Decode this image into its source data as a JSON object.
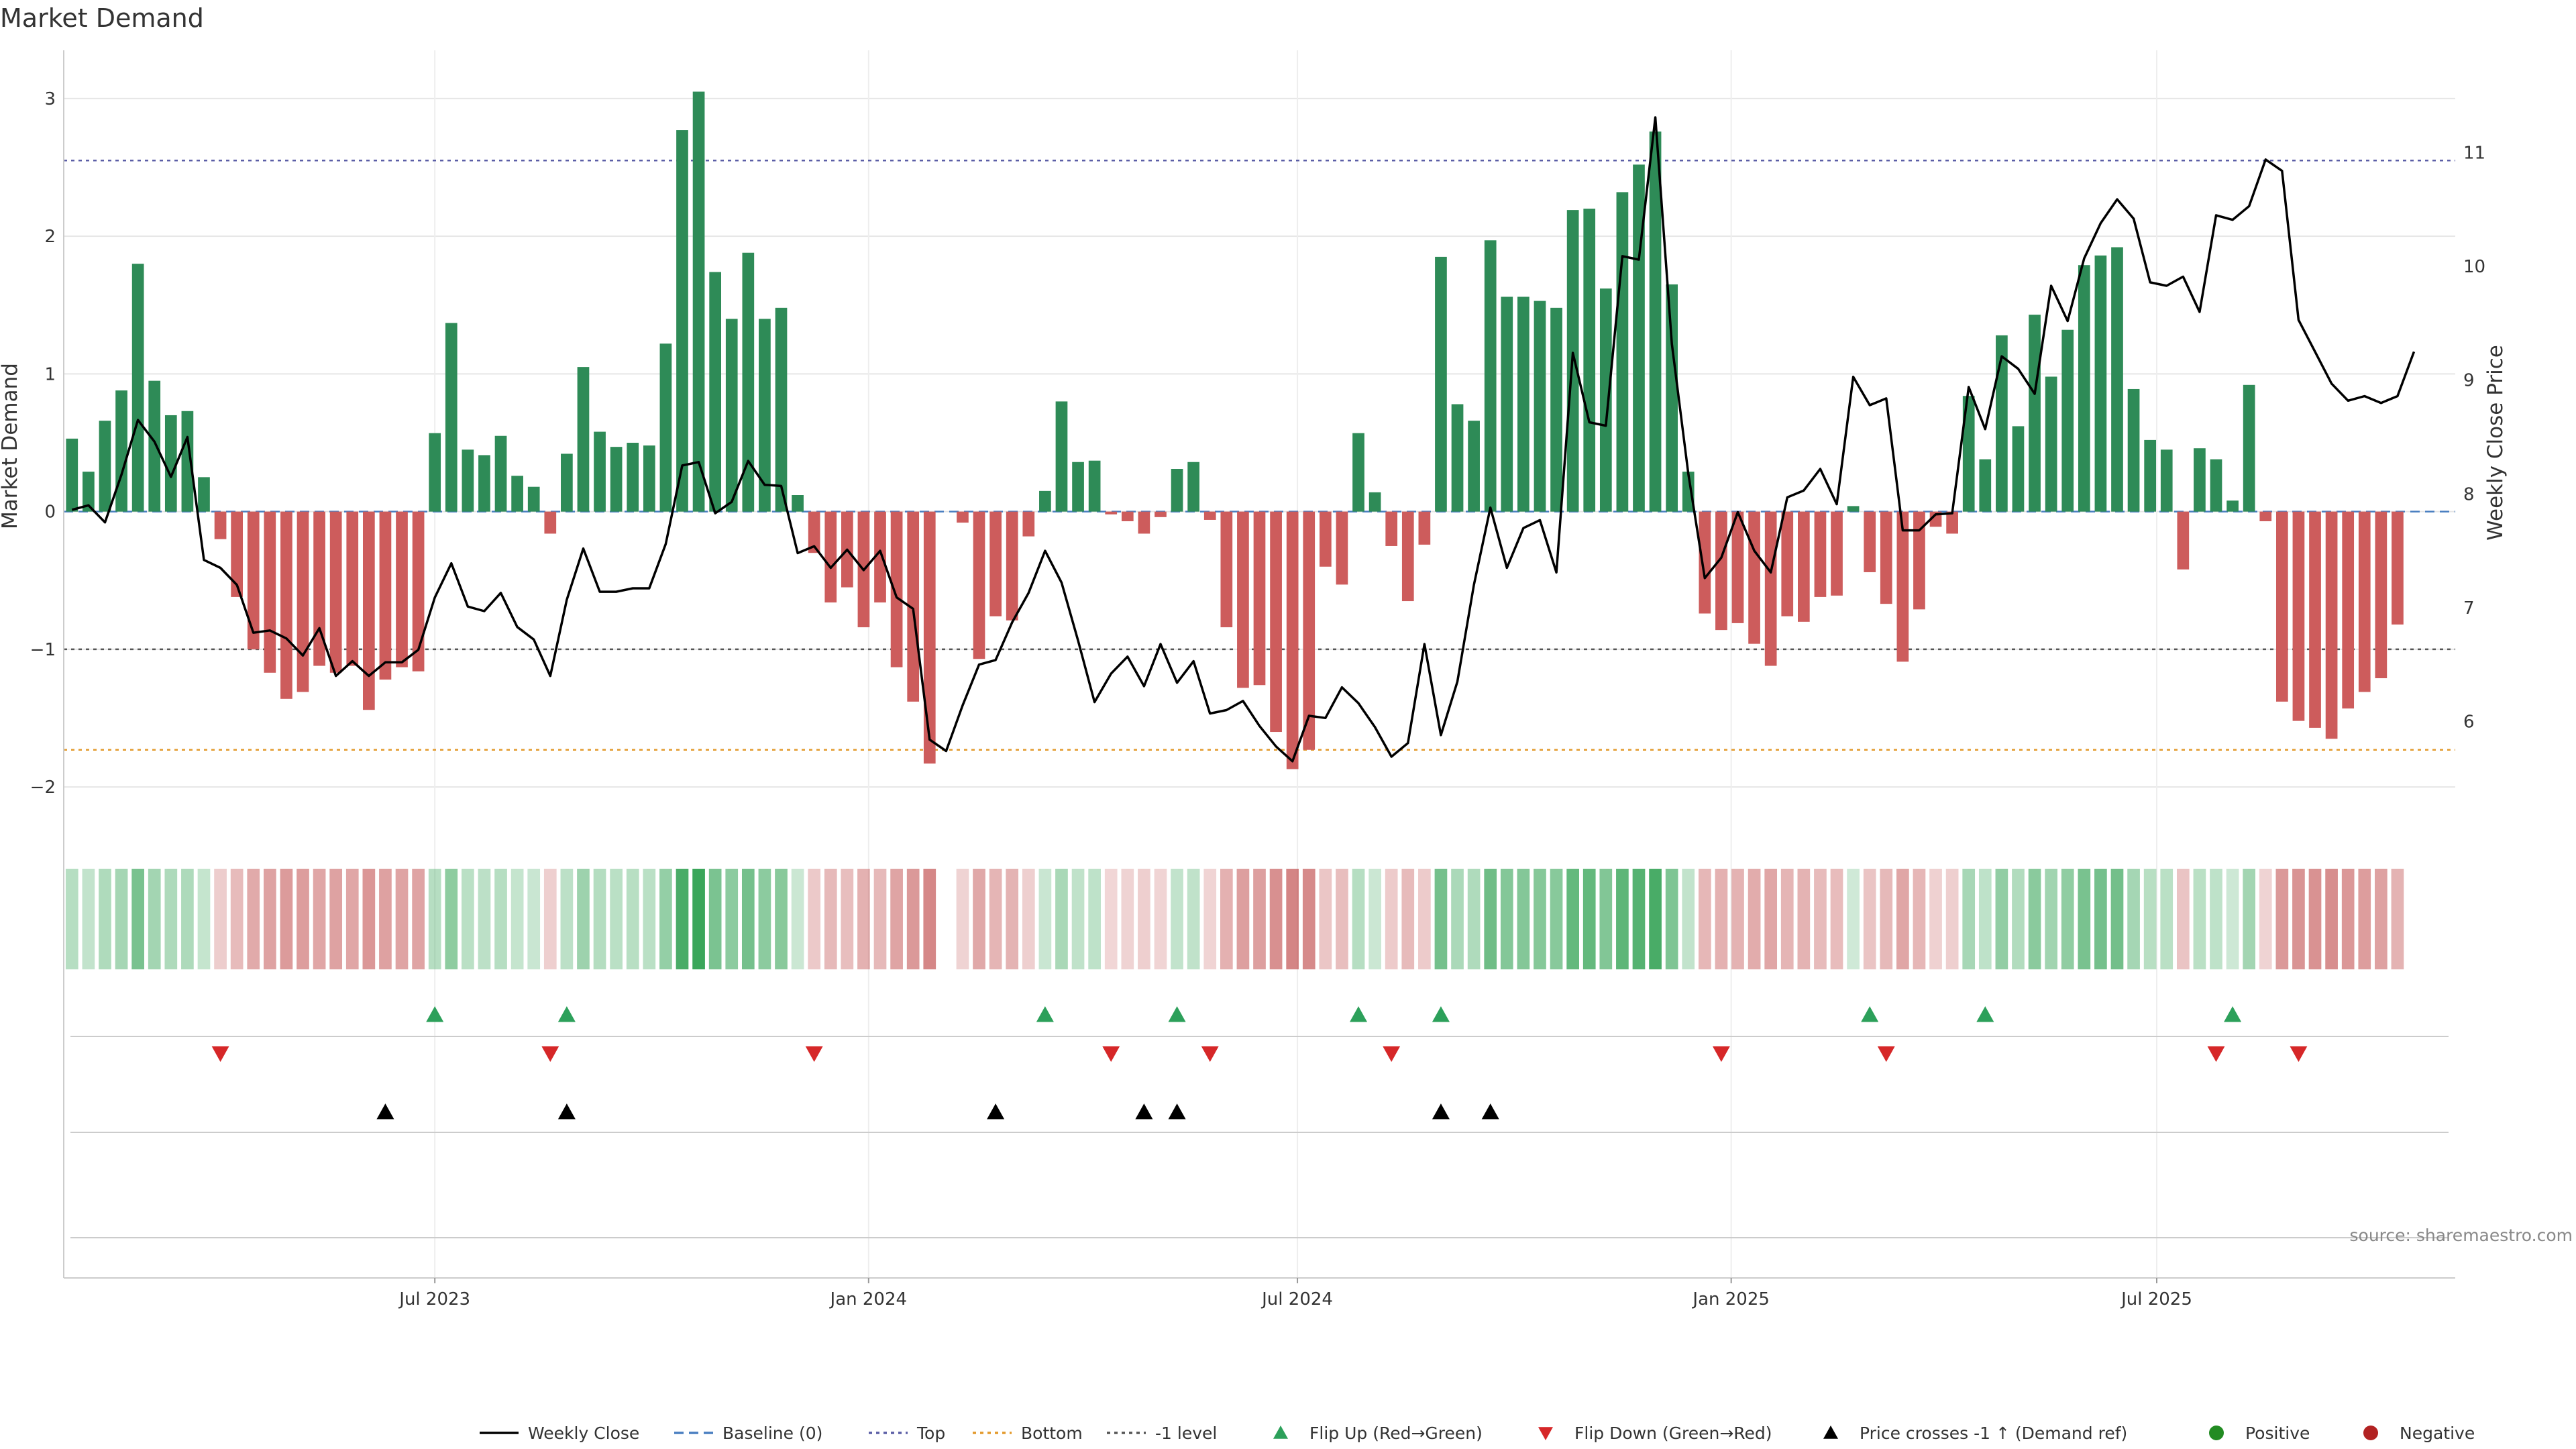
{
  "chart_data": {
    "type": "bar",
    "title": "Market Demand",
    "ylabel": "Market Demand",
    "y2label": "Weekly Close Price",
    "ylim": [
      -2.35,
      3.35
    ],
    "y2lim": [
      5.0,
      11.9
    ],
    "yticks": [
      3,
      2,
      1,
      0,
      -1,
      -2
    ],
    "ytick_labels": [
      "3",
      "2",
      "1",
      "0",
      "−1",
      "−2"
    ],
    "y2ticks": [
      11,
      10,
      9,
      8,
      7,
      6
    ],
    "y2tick_labels": [
      "11",
      "10",
      "9",
      "8",
      "7",
      "6"
    ],
    "x_start": "2023-03-13",
    "x_step_days": 7,
    "xlim": [
      -0.5,
      144.5
    ],
    "xticks": [
      {
        "label": "Jul 2023",
        "x": 22.0
      },
      {
        "label": "Jan 2024",
        "x": 48.3
      },
      {
        "label": "Jul 2024",
        "x": 74.3
      },
      {
        "label": "Jan 2025",
        "x": 100.6
      },
      {
        "label": "Jul 2025",
        "x": 126.4
      }
    ],
    "reference_lines": [
      {
        "name": "Top",
        "value": 2.55,
        "color": "#5b5ea6",
        "style": "dotted"
      },
      {
        "name": "-1 level",
        "value": -1.0,
        "color": "#555555",
        "style": "dotted"
      },
      {
        "name": "Bottom",
        "value": -1.73,
        "color": "#e39a2c",
        "style": "dotted"
      },
      {
        "name": "Baseline (0)",
        "value": 0,
        "color": "#4a7fc1",
        "style": "dashed"
      }
    ],
    "series": [
      {
        "name": "Market Demand",
        "type": "bar",
        "values": [
          0.53,
          0.29,
          0.66,
          0.88,
          1.8,
          0.95,
          0.7,
          0.73,
          0.25,
          -0.2,
          -0.62,
          -1.0,
          -1.17,
          -1.36,
          -1.31,
          -1.12,
          -1.17,
          -1.12,
          -1.44,
          -1.22,
          -1.13,
          -1.16,
          0.57,
          1.37,
          0.45,
          0.41,
          0.55,
          0.26,
          0.18,
          -0.16,
          0.42,
          1.05,
          0.58,
          0.47,
          0.5,
          0.48,
          1.22,
          2.77,
          3.05,
          1.74,
          1.4,
          1.88,
          1.4,
          1.48,
          0.12,
          -0.3,
          -0.66,
          -0.55,
          -0.84,
          -0.66,
          -1.13,
          -1.38,
          -1.83,
          0,
          -0.08,
          -1.07,
          -0.76,
          -0.79,
          -0.18,
          0.15,
          0.8,
          0.36,
          0.37,
          -0.02,
          -0.07,
          -0.16,
          -0.04,
          0.31,
          0.36,
          -0.06,
          -0.84,
          -1.28,
          -1.26,
          -1.6,
          -1.87,
          -1.73,
          -0.4,
          -0.53,
          0.57,
          0.14,
          -0.25,
          -0.65,
          -0.24,
          1.85,
          0.78,
          0.66,
          1.97,
          1.56,
          1.56,
          1.53,
          1.48,
          2.19,
          2.2,
          1.62,
          2.32,
          2.52,
          2.76,
          1.65,
          0.29,
          -0.74,
          -0.86,
          -0.81,
          -0.96,
          -1.12,
          -0.76,
          -0.8,
          -0.62,
          -0.61,
          0.04,
          -0.44,
          -0.67,
          -1.09,
          -0.71,
          -0.11,
          -0.16,
          0.84,
          0.38,
          1.28,
          0.62,
          1.43,
          0.98,
          1.32,
          1.79,
          1.86,
          1.92,
          0.89,
          0.52,
          0.45,
          -0.42,
          0.46,
          0.38,
          0.08,
          0.92,
          -0.07,
          -1.38,
          -1.52,
          -1.57,
          -1.65,
          -1.43,
          -1.31,
          -1.21,
          -0.82
        ]
      },
      {
        "name": "Weekly Close",
        "type": "line",
        "axis": "right",
        "values": [
          7.86,
          7.9,
          7.75,
          8.17,
          8.65,
          8.46,
          8.15,
          8.5,
          7.42,
          7.35,
          7.2,
          6.78,
          6.8,
          6.73,
          6.58,
          6.82,
          6.4,
          6.53,
          6.4,
          6.52,
          6.52,
          6.63,
          7.09,
          7.39,
          7.01,
          6.97,
          7.13,
          6.83,
          6.72,
          6.4,
          7.07,
          7.52,
          7.14,
          7.14,
          7.17,
          7.17,
          7.56,
          8.25,
          8.28,
          7.83,
          7.93,
          8.29,
          8.08,
          8.07,
          7.48,
          7.54,
          7.35,
          7.51,
          7.33,
          7.5,
          7.09,
          6.99,
          5.84,
          5.74,
          6.14,
          6.5,
          6.54,
          6.87,
          7.13,
          7.5,
          7.22,
          6.71,
          6.17,
          6.42,
          6.57,
          6.31,
          6.68,
          6.34,
          6.53,
          6.07,
          6.1,
          6.18,
          5.96,
          5.78,
          5.65,
          6.05,
          6.03,
          6.3,
          6.16,
          5.95,
          5.69,
          5.81,
          6.68,
          5.88,
          6.35,
          7.2,
          7.88,
          7.35,
          7.7,
          7.77,
          7.31,
          9.24,
          8.63,
          8.6,
          10.09,
          10.06,
          11.31,
          9.32,
          8.18,
          7.26,
          7.44,
          7.84,
          7.5,
          7.31,
          7.97,
          8.03,
          8.22,
          7.91,
          9.03,
          8.78,
          8.84,
          7.68,
          7.68,
          7.82,
          7.83,
          8.94,
          8.57,
          9.21,
          9.1,
          8.88,
          9.83,
          9.52,
          10.07,
          10.38,
          10.59,
          10.42,
          9.86,
          9.83,
          9.91,
          9.6,
          10.45,
          10.41,
          10.53,
          10.94,
          10.84,
          9.53,
          9.25,
          8.97,
          8.82,
          8.86,
          8.8,
          8.86,
          9.25
        ]
      }
    ],
    "panels": {
      "heat_strip": {
        "description_source": "shade of demand per week"
      },
      "flip_up": {
        "name": "Flip Up (Red→Green)",
        "indices": [
          22,
          30,
          59,
          67,
          78,
          83,
          109,
          116,
          131
        ]
      },
      "flip_down": {
        "name": "Flip Down (Green→Red)",
        "indices": [
          9,
          29,
          45,
          63,
          69,
          80,
          100,
          110,
          130,
          135
        ]
      },
      "price_crosses": {
        "name": "Price crosses -1 ↑ (Demand ref)",
        "indices": [
          19,
          30,
          56,
          65,
          67,
          83,
          86
        ]
      }
    },
    "legend": {
      "placement": "bottom-center",
      "entries": [
        {
          "label": "Weekly Close",
          "kind": "line",
          "color": "#000000"
        },
        {
          "label": "Baseline (0)",
          "kind": "dashed",
          "color": "#4a7fc1"
        },
        {
          "label": "Top",
          "kind": "dotted",
          "color": "#5b5ea6"
        },
        {
          "label": "Bottom",
          "kind": "dotted",
          "color": "#e39a2c"
        },
        {
          "label": "-1 level",
          "kind": "dotted",
          "color": "#555555"
        },
        {
          "label": "Flip Up (Red→Green)",
          "kind": "triangle-up",
          "color": "#2ca05a"
        },
        {
          "label": "Flip Down (Green→Red)",
          "kind": "triangle-down",
          "color": "#d62728"
        },
        {
          "label": "Price crosses -1 ↑ (Demand ref)",
          "kind": "triangle-up",
          "color": "#000000"
        },
        {
          "label": "Positive",
          "kind": "dot",
          "color": "#228b22"
        },
        {
          "label": "Negative",
          "kind": "dot",
          "color": "#b22222"
        }
      ]
    },
    "source": "source: sharemaestro.com",
    "colors": {
      "positive_bar": "#2e8b57",
      "negative_bar": "#cd5c5c",
      "flip_up": "#2ca05a",
      "flip_down": "#d62728",
      "price_cross": "#000000",
      "price_line": "#000000",
      "grid": "#e6e6e6",
      "axis": "#cccccc"
    }
  }
}
